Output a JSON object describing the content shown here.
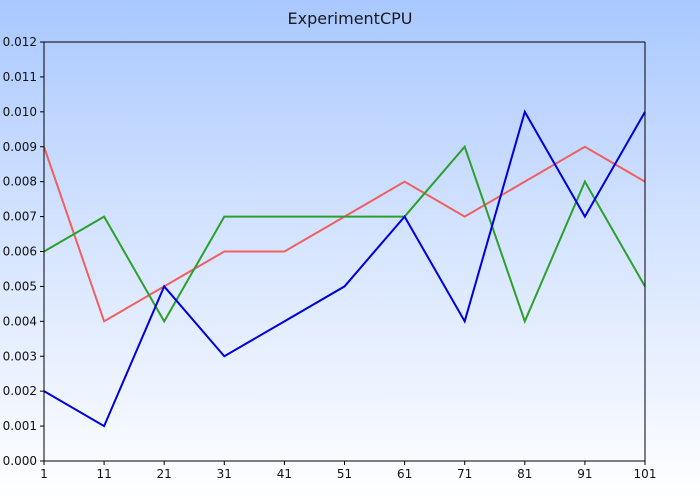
{
  "chart_data": {
    "type": "line",
    "title": "ExperimentCPU",
    "xlabel": "",
    "ylabel": "",
    "x": [
      1,
      11,
      21,
      31,
      41,
      51,
      61,
      71,
      81,
      91,
      101
    ],
    "xlim": [
      1,
      101
    ],
    "ylim": [
      0,
      0.012
    ],
    "y_ticks": [
      "0.000",
      "0.001",
      "0.002",
      "0.003",
      "0.004",
      "0.005",
      "0.006",
      "0.007",
      "0.008",
      "0.009",
      "0.010",
      "0.011",
      "0.012"
    ],
    "x_ticks": [
      "1",
      "11",
      "21",
      "31",
      "41",
      "51",
      "61",
      "71",
      "81",
      "91",
      "101"
    ],
    "grid": false,
    "legend": "none",
    "series": [
      {
        "color": "#f06060",
        "values": [
          0.009,
          0.004,
          0.005,
          0.006,
          0.006,
          0.007,
          0.008,
          0.007,
          0.008,
          0.009,
          0.008
        ]
      },
      {
        "color": "#2ca02c",
        "values": [
          0.006,
          0.007,
          0.004,
          0.007,
          0.007,
          0.007,
          0.007,
          0.009,
          0.004,
          0.008,
          0.005
        ]
      },
      {
        "color": "#0000dd",
        "values": [
          0.002,
          0.001,
          0.005,
          0.003,
          0.004,
          0.005,
          0.007,
          0.004,
          0.01,
          0.007,
          0.01
        ]
      }
    ]
  }
}
